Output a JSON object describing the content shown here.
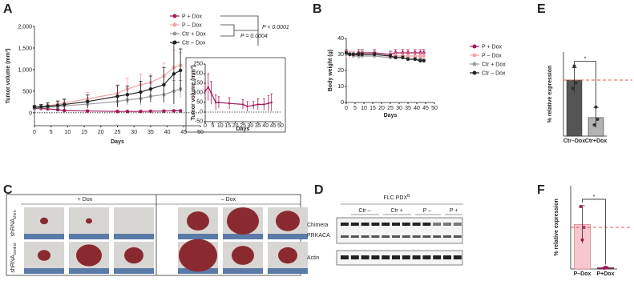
{
  "panel_labels": [
    "A",
    "B",
    "C",
    "D",
    "E",
    "F"
  ],
  "chart_data": [
    {
      "type": "line",
      "ylabel": "Tumor volume (mm³)",
      "xlabel": "Days",
      "x": [
        0,
        2,
        4,
        7,
        9,
        16,
        25,
        28,
        32,
        35,
        39,
        42,
        44
      ],
      "xlim": [
        0,
        50
      ],
      "xticks": [
        0,
        5,
        10,
        15,
        20,
        25,
        30,
        35,
        40,
        45,
        50
      ],
      "ylim": [
        -300,
        2000
      ],
      "yticks": [
        {
          "value": 2000,
          "label": "2,000"
        },
        {
          "value": 1500,
          "label": "1,500"
        },
        {
          "value": 1000,
          "label": "1,000"
        },
        500,
        0
      ],
      "reference_line": 0,
      "legend": true,
      "series": [
        {
          "name": "P + Dox",
          "color": "#a3195b",
          "values": [
            100,
            100,
            90,
            70,
            50,
            40,
            30,
            30,
            30,
            35,
            40,
            45,
            45
          ],
          "errors": [
            40,
            30,
            30,
            20,
            20,
            15,
            15,
            10,
            10,
            10,
            15,
            15,
            10
          ]
        },
        {
          "name": "P – Dox",
          "color": "#f4a3a8",
          "values": [
            120,
            140,
            160,
            200,
            230,
            320,
            450,
            550,
            650,
            700,
            850,
            1050,
            1100
          ],
          "errors": [
            40,
            50,
            60,
            80,
            100,
            150,
            200,
            250,
            250,
            200,
            300,
            400,
            300
          ]
        },
        {
          "name": "Ctr + Dox",
          "color": "#9b9b9b",
          "values": [
            110,
            120,
            130,
            140,
            160,
            200,
            260,
            300,
            330,
            380,
            420,
            500,
            550
          ],
          "errors": [
            30,
            40,
            50,
            60,
            60,
            80,
            100,
            120,
            150,
            150,
            200,
            250,
            200
          ]
        },
        {
          "name": "Ctr – Dox",
          "color": "#222222",
          "values": [
            130,
            140,
            150,
            170,
            190,
            260,
            380,
            420,
            480,
            550,
            650,
            900,
            980
          ],
          "errors": [
            40,
            50,
            80,
            100,
            120,
            150,
            250,
            200,
            250,
            300,
            400,
            700,
            500
          ]
        }
      ],
      "annotations": [
        "P = 0.0004",
        "P < 0.0001"
      ]
    },
    {
      "type": "line",
      "ylabel": "Tumor volume (mm³)",
      "xlabel": "Days",
      "x": [
        0,
        2,
        4,
        7,
        9,
        16,
        25,
        28,
        32,
        35,
        39,
        42,
        44
      ],
      "xlim": [
        0,
        50
      ],
      "xticks": [
        0,
        5,
        10,
        15,
        20,
        25,
        30,
        35,
        40,
        45,
        50
      ],
      "ylim": [
        -50,
        250
      ],
      "yticks": [
        -50,
        0,
        50,
        100,
        150,
        200,
        250
      ],
      "reference_line": 0,
      "legend": false,
      "series": [
        {
          "color": "#a3195b",
          "values": [
            110,
            130,
            100,
            50,
            50,
            45,
            40,
            30,
            35,
            40,
            40,
            45,
            50
          ],
          "errors": [
            40,
            70,
            60,
            40,
            30,
            30,
            25,
            25,
            20,
            30,
            30,
            40,
            45
          ]
        }
      ]
    },
    {
      "type": "line",
      "ylabel": "Body weight (g)",
      "xlabel": "Days",
      "x": [
        0,
        2,
        4,
        7,
        9,
        16,
        25,
        28,
        32,
        35,
        39,
        42,
        44
      ],
      "xlim": [
        0,
        50
      ],
      "xticks": [
        0,
        5,
        10,
        15,
        20,
        25,
        30,
        35,
        40,
        45,
        50
      ],
      "ylim": [
        0,
        40
      ],
      "yticks": [
        0,
        10,
        20,
        30,
        40
      ],
      "legend": true,
      "series": [
        {
          "name": "P + Dox",
          "color": "#a3195b",
          "values": [
            31,
            30,
            30,
            31,
            31,
            31,
            30,
            31,
            31,
            31,
            31,
            31,
            31
          ],
          "errors": [
            2,
            2,
            2,
            2,
            2,
            2,
            2,
            2,
            2,
            2,
            2,
            2,
            2
          ]
        },
        {
          "name": "P – Dox",
          "color": "#f4a3a8",
          "values": [
            30,
            30,
            30,
            29,
            30,
            30,
            29,
            29,
            29,
            29,
            29,
            29,
            29
          ],
          "errors": [
            2,
            2,
            2,
            2,
            2,
            2,
            2,
            2,
            2,
            2,
            2,
            2,
            2
          ]
        },
        {
          "name": "Ctr + Dox",
          "color": "#9b9b9b",
          "values": [
            30,
            30,
            29,
            29,
            29,
            29,
            28,
            28,
            28,
            27,
            27,
            27,
            26
          ],
          "errors": [
            1,
            1,
            1,
            1,
            1,
            1,
            1,
            1,
            1,
            1,
            1,
            1,
            1
          ]
        },
        {
          "name": "Ctr – Dox",
          "color": "#222222",
          "values": [
            31,
            30,
            30,
            30,
            30,
            30,
            29,
            28,
            28,
            27,
            27,
            26,
            26
          ],
          "errors": [
            1,
            1,
            1,
            1,
            1,
            1,
            1,
            1,
            1,
            1,
            1,
            1,
            1
          ]
        }
      ]
    },
    {
      "type": "bar",
      "ylabel": "% relative expression",
      "categories": [
        "Ctr–Dox",
        "Ctr+Dox"
      ],
      "values": [
        100,
        33
      ],
      "errors": [
        22,
        18
      ],
      "colors": [
        "#555555",
        "#b3b3b3"
      ],
      "points": [
        [
          85,
          125,
          95
        ],
        [
          20,
          52,
          30
        ]
      ],
      "ylim": [
        0,
        150
      ],
      "reference_line": 100,
      "significance": "*"
    },
    {
      "type": "bar",
      "ylabel": "% relative expression",
      "categories": [
        "P–Dox",
        "P+Dox"
      ],
      "values": [
        107,
        3
      ],
      "errors": [
        45,
        2
      ],
      "colors": [
        "#f6c7cc",
        "#a3195b"
      ],
      "points": [
        [
          150,
          70,
          100
        ],
        [
          2,
          4,
          3
        ]
      ],
      "ylim": [
        0,
        200
      ],
      "reference_line": 100,
      "significance": "*"
    }
  ],
  "panel_c": {
    "columns": [
      "+ Dox",
      "– Dox"
    ],
    "rows": [
      {
        "name": "shRNA",
        "sub": "chim"
      },
      {
        "name": "shRNA",
        "sub": "control"
      }
    ]
  },
  "panel_d": {
    "title": "FLC  PDX",
    "title_sup": "B",
    "groups": [
      "Ctr –",
      "Ctr +",
      "P –",
      "P +"
    ],
    "rows": [
      "Chimera",
      "PRKACA",
      "Actin"
    ]
  }
}
